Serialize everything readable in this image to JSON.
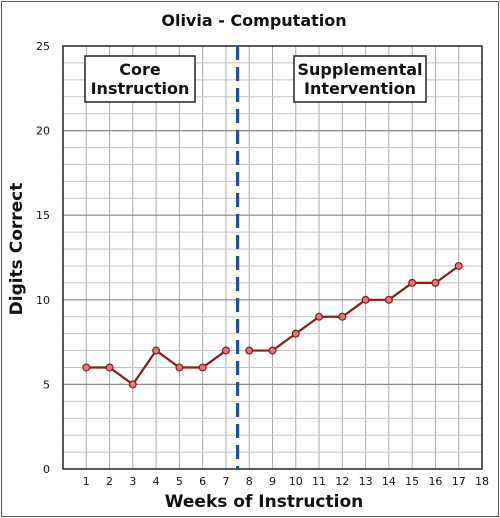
{
  "chart_data": {
    "type": "line",
    "title": "Olivia - Computation",
    "xlabel": "Weeks of Instruction",
    "ylabel": "Digits Correct",
    "xlim": [
      0,
      18
    ],
    "ylim": [
      0,
      25
    ],
    "x_ticks": [
      1,
      2,
      3,
      4,
      5,
      6,
      7,
      8,
      9,
      10,
      11,
      12,
      13,
      14,
      15,
      16,
      17,
      18
    ],
    "y_ticks": [
      0,
      5,
      10,
      15,
      20,
      25
    ],
    "grid": true,
    "phase_change_line": {
      "x": 7.5,
      "style": "dashed",
      "color": "#1f4fa8"
    },
    "phase_labels": [
      {
        "lines": [
          "Core",
          "Instruction"
        ]
      },
      {
        "lines": [
          "Supplemental",
          "Intervention"
        ]
      }
    ],
    "series": [
      {
        "color": "#8b1a1a",
        "marker_color": "#e8737a",
        "segments": [
          {
            "x": [
              1,
              2,
              3,
              4,
              5,
              6,
              7
            ],
            "y": [
              6,
              6,
              5,
              7,
              6,
              6,
              7
            ]
          },
          {
            "x": [
              8,
              9,
              10,
              11,
              12,
              13,
              14,
              15,
              16,
              17
            ],
            "y": [
              7,
              7,
              8,
              9,
              9,
              10,
              10,
              11,
              11,
              12
            ]
          }
        ]
      }
    ]
  }
}
